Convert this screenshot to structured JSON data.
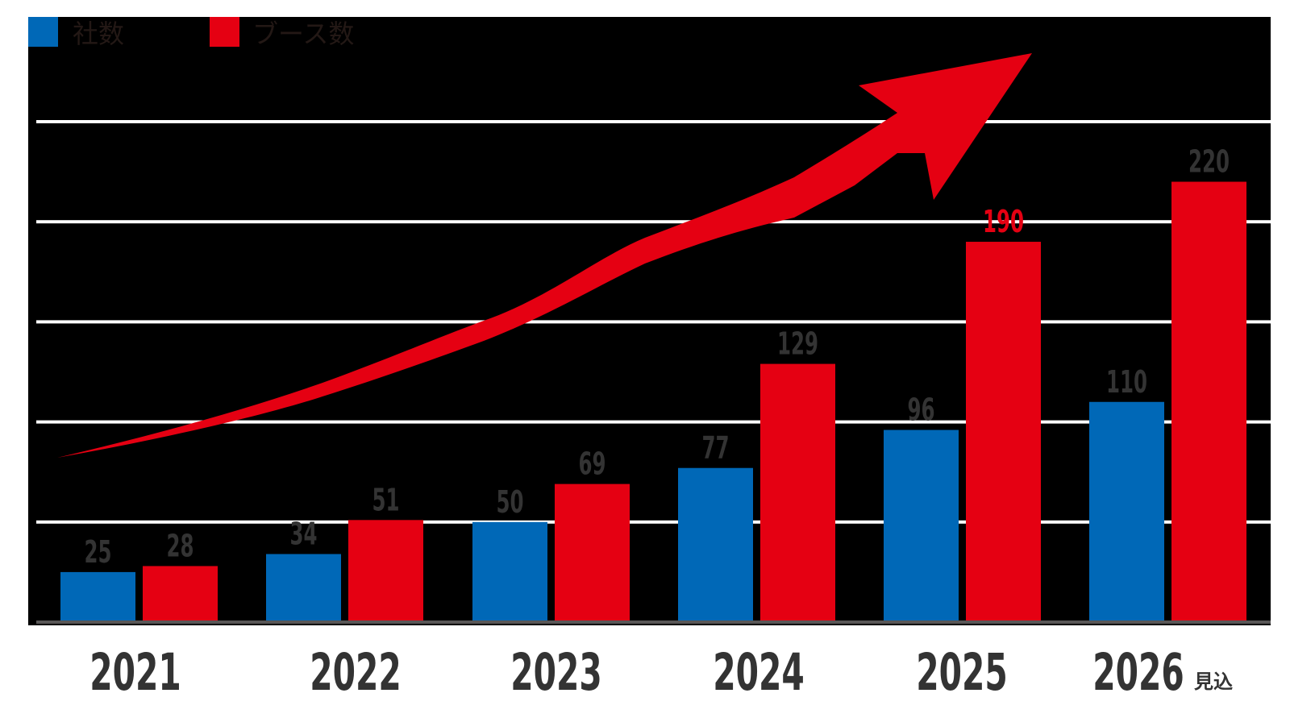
{
  "legend": {
    "items": [
      {
        "label": "社数",
        "color": "#0068B7"
      },
      {
        "label": "ブース数",
        "color": "#E50012"
      }
    ]
  },
  "colors": {
    "plot_background": "#000000",
    "page_background": "#FFFFFF",
    "gridline": "#FFFFFF",
    "baseline": "#595757",
    "value_label": "#333333",
    "highlight_label": "#E50012",
    "legend_text": "#231815",
    "year_label": "#333333",
    "arrow": "#E50012"
  },
  "chart_data": {
    "type": "bar",
    "title": "",
    "xlabel": "",
    "ylabel": "",
    "categories": [
      "2021",
      "2022",
      "2023",
      "2024",
      "2025",
      "2026"
    ],
    "category_suffixes": [
      "",
      "",
      "",
      "",
      "",
      "見込"
    ],
    "series": [
      {
        "name": "社数",
        "color": "#0068B7",
        "values": [
          25,
          34,
          50,
          77,
          96,
          110
        ]
      },
      {
        "name": "ブース数",
        "color": "#E50012",
        "values": [
          28,
          51,
          69,
          129,
          190,
          220
        ]
      }
    ],
    "highlighted_labels": [
      {
        "series": 1,
        "index": 4
      }
    ],
    "ylim": [
      0,
      250
    ],
    "gridlines": [
      50,
      100,
      150,
      200,
      250
    ],
    "grid": true,
    "y_axis_ticks_visible": false,
    "legend_position": "top-left",
    "annotations": [
      {
        "type": "curved-arrow",
        "direction": "up-right",
        "color": "#E50012",
        "meaning": "growth trend"
      }
    ]
  }
}
